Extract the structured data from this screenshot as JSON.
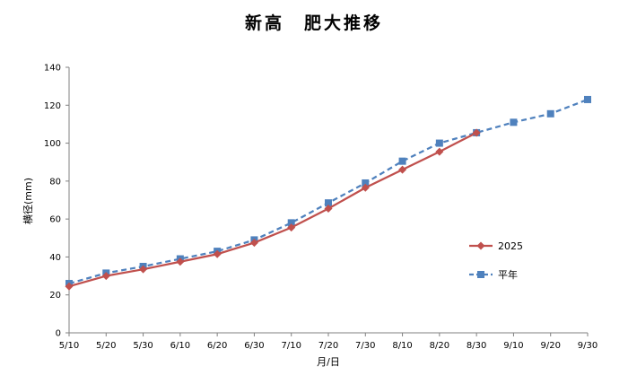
{
  "chart_data": {
    "type": "line",
    "title": "新高　肥大推移",
    "xlabel": "月/日",
    "ylabel": "横径(mm)",
    "categories": [
      "5/10",
      "5/20",
      "5/30",
      "6/10",
      "6/20",
      "6/30",
      "7/10",
      "7/20",
      "7/30",
      "8/10",
      "8/20",
      "8/30",
      "9/10",
      "9/20",
      "9/30"
    ],
    "ylim": [
      0,
      140
    ],
    "yticks": [
      0,
      20,
      40,
      60,
      80,
      100,
      120,
      140
    ],
    "grid": false,
    "legend_position": "right",
    "series": [
      {
        "name": "2025",
        "color": "#C0504D",
        "marker": "diamond",
        "line_style": "solid",
        "values": [
          24.5,
          30,
          33.5,
          37.5,
          41.5,
          47.5,
          55.5,
          65.5,
          76.5,
          86,
          95.5,
          105.5,
          null,
          null,
          null
        ]
      },
      {
        "name": "平年",
        "color": "#4F81BD",
        "marker": "square",
        "line_style": "dashed",
        "values": [
          26,
          31.5,
          35,
          39,
          43,
          49,
          58,
          68.5,
          79,
          90.5,
          100,
          105.5,
          111,
          115.5,
          123
        ]
      }
    ]
  }
}
